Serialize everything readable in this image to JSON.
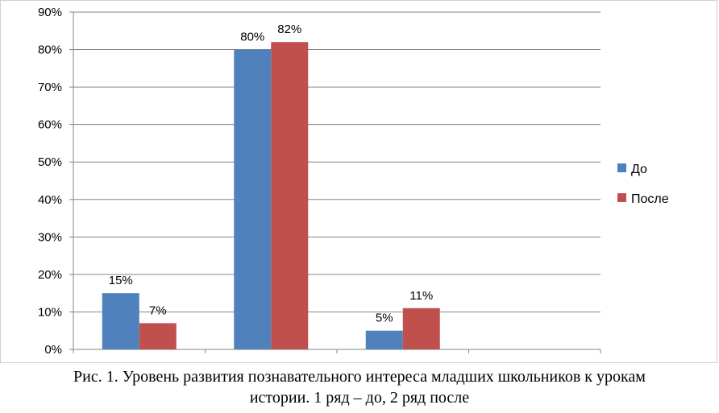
{
  "chart_data": {
    "type": "bar",
    "categories": [
      "",
      "",
      "",
      ""
    ],
    "series": [
      {
        "name": "До",
        "values": [
          15,
          80,
          5,
          null
        ],
        "labels": [
          "15%",
          "80%",
          "5%",
          ""
        ],
        "color": "#4f81bd"
      },
      {
        "name": "После",
        "values": [
          7,
          82,
          11,
          null
        ],
        "labels": [
          "7%",
          "82%",
          "11%",
          ""
        ],
        "color": "#c0504d"
      }
    ],
    "ylim": [
      0,
      90
    ],
    "yticks": [
      "0%",
      "10%",
      "20%",
      "30%",
      "40%",
      "50%",
      "60%",
      "70%",
      "80%",
      "90%"
    ],
    "grid": true,
    "legend": "right",
    "title": "",
    "xlabel": "",
    "ylabel": ""
  },
  "caption": {
    "line1": "Рис. 1. Уровень развития познавательного интереса младших школьников к урокам",
    "line2": "истории. 1 ряд – до, 2 ряд после"
  }
}
